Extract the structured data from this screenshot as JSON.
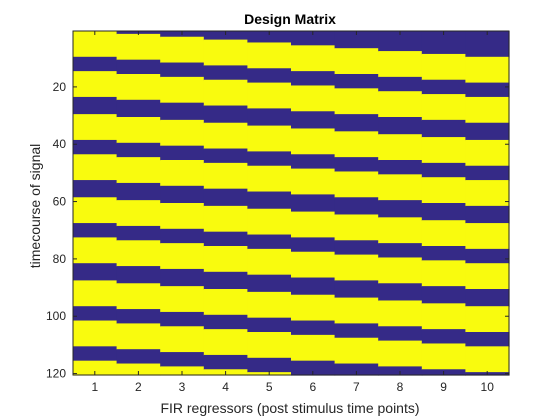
{
  "chart_data": {
    "type": "heatmap",
    "title": "Design Matrix",
    "xlabel": "FIR regressors (post stimulus time points)",
    "ylabel": "timecourse of signal",
    "x_ticks": [
      1,
      2,
      3,
      4,
      5,
      6,
      7,
      8,
      9,
      10
    ],
    "y_ticks": [
      20,
      40,
      60,
      80,
      100,
      120
    ],
    "xlim": [
      0.5,
      10.5
    ],
    "ylim": [
      0.5,
      120.5
    ],
    "y_reversed": true,
    "columns": 10,
    "rows": 120,
    "value_range": [
      0,
      1
    ],
    "colors": {
      "low": "#352a87",
      "high": "#f9fb0e"
    },
    "stimulus_onsets": [
      1,
      15,
      30,
      44,
      59,
      73,
      88,
      102,
      116
    ],
    "stimulus_duration": 9,
    "colorbar": false
  }
}
